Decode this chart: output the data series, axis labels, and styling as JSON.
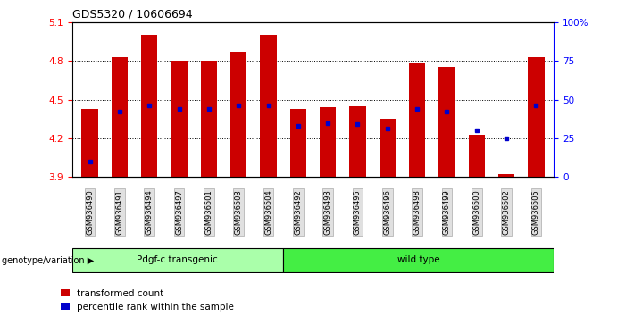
{
  "title": "GDS5320 / 10606694",
  "samples": [
    "GSM936490",
    "GSM936491",
    "GSM936494",
    "GSM936497",
    "GSM936501",
    "GSM936503",
    "GSM936504",
    "GSM936492",
    "GSM936493",
    "GSM936495",
    "GSM936496",
    "GSM936498",
    "GSM936499",
    "GSM936500",
    "GSM936502",
    "GSM936505"
  ],
  "group1_name": "Pdgf-c transgenic",
  "group1_color": "#AAFFAA",
  "group1_count": 7,
  "group2_name": "wild type",
  "group2_color": "#44EE44",
  "group2_count": 9,
  "transformed_count": [
    4.43,
    4.83,
    5.0,
    4.8,
    4.8,
    4.87,
    5.0,
    4.43,
    4.44,
    4.45,
    4.35,
    4.78,
    4.75,
    4.23,
    3.92,
    4.83
  ],
  "percentile_rank": [
    10,
    42,
    46,
    44,
    44,
    46,
    46,
    33,
    35,
    34,
    31,
    44,
    42,
    30,
    25,
    46
  ],
  "y_min": 3.9,
  "y_max": 5.1,
  "y_ticks": [
    3.9,
    4.2,
    4.5,
    4.8,
    5.1
  ],
  "y_right_ticks": [
    0,
    25,
    50,
    75,
    100
  ],
  "y_right_labels": [
    "0",
    "25",
    "50",
    "75",
    "100%"
  ],
  "bar_color": "#CC0000",
  "dot_color": "#0000CC",
  "legend_items": [
    "transformed count",
    "percentile rank within the sample"
  ],
  "genotype_label": "genotype/variation"
}
